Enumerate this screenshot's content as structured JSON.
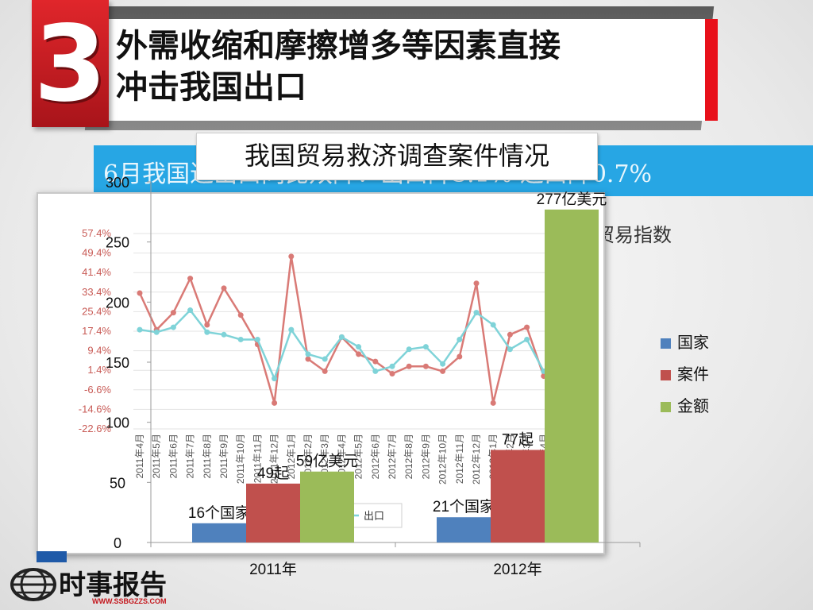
{
  "header": {
    "number": "3",
    "title_line1": "外需收缩和摩擦增多等因素直接",
    "title_line2": "冲击我国出口"
  },
  "background_news": {
    "headline_fragment": "6月我国进出口同比双降：出口降3.1%  进口降0.7%",
    "right_caption_fragment": "贸易指数",
    "inset_y_ticks": [
      "57.4%",
      "49.4%",
      "41.4%",
      "33.4%",
      "25.4%",
      "17.4%",
      "9.4%",
      "1.4%",
      "-6.6%",
      "-14.6%",
      "-22.6%"
    ],
    "inset_x_ticks": [
      "2011年4月",
      "2011年5月",
      "2011年6月",
      "2011年7月",
      "2011年8月",
      "2011年9月",
      "2011年10月",
      "2011年11月",
      "2011年12月",
      "2012年1月",
      "2012年2月",
      "2012年3月",
      "2012年4月",
      "2012年5月",
      "2012年6月",
      "2012年7月",
      "2012年8月",
      "2012年9月",
      "2012年10月",
      "2012年11月",
      "2012年12月",
      "2013年1月",
      "2013年2月",
      "2013年3月",
      "2013年4月",
      "2013年5月"
    ],
    "inset_legend": "出口",
    "inset_series": {
      "red": [
        33,
        18,
        25,
        39,
        20,
        35,
        24,
        12,
        -12,
        48,
        6,
        1,
        15,
        8,
        5,
        0,
        3,
        3,
        1,
        7,
        37,
        -12,
        16,
        19,
        -1,
        -1
      ],
      "cyan": [
        18,
        17,
        19,
        26,
        17,
        16,
        14,
        14,
        -2,
        18,
        8,
        6,
        15,
        11,
        1,
        3,
        10,
        11,
        4,
        14,
        25,
        20,
        10,
        14,
        1,
        -1
      ]
    }
  },
  "caption": "我国贸易救济调查案件情况",
  "colors": {
    "country": "#4f81bd",
    "cases": "#c0504d",
    "amount": "#9bbb59",
    "accent_red": "#e8101a",
    "band_blue": "#27a6e4"
  },
  "logo": {
    "name": "时事报告",
    "url_text": "WWW.SSBGZZS.COM"
  },
  "chart_data": {
    "type": "bar",
    "categories": [
      "2011年",
      "2012年"
    ],
    "series": [
      {
        "name": "国家",
        "values": [
          16,
          21
        ],
        "labels": [
          "16个国家",
          "21个国家"
        ]
      },
      {
        "name": "案件",
        "values": [
          49,
          77
        ],
        "labels": [
          "49起",
          "77起"
        ]
      },
      {
        "name": "金额",
        "values": [
          59,
          277
        ],
        "labels": [
          "59亿美元",
          "277亿美元"
        ]
      }
    ],
    "ylim": [
      0,
      300
    ],
    "yticks": [
      0,
      50,
      100,
      150,
      200,
      250,
      300
    ],
    "legend_position": "right"
  }
}
